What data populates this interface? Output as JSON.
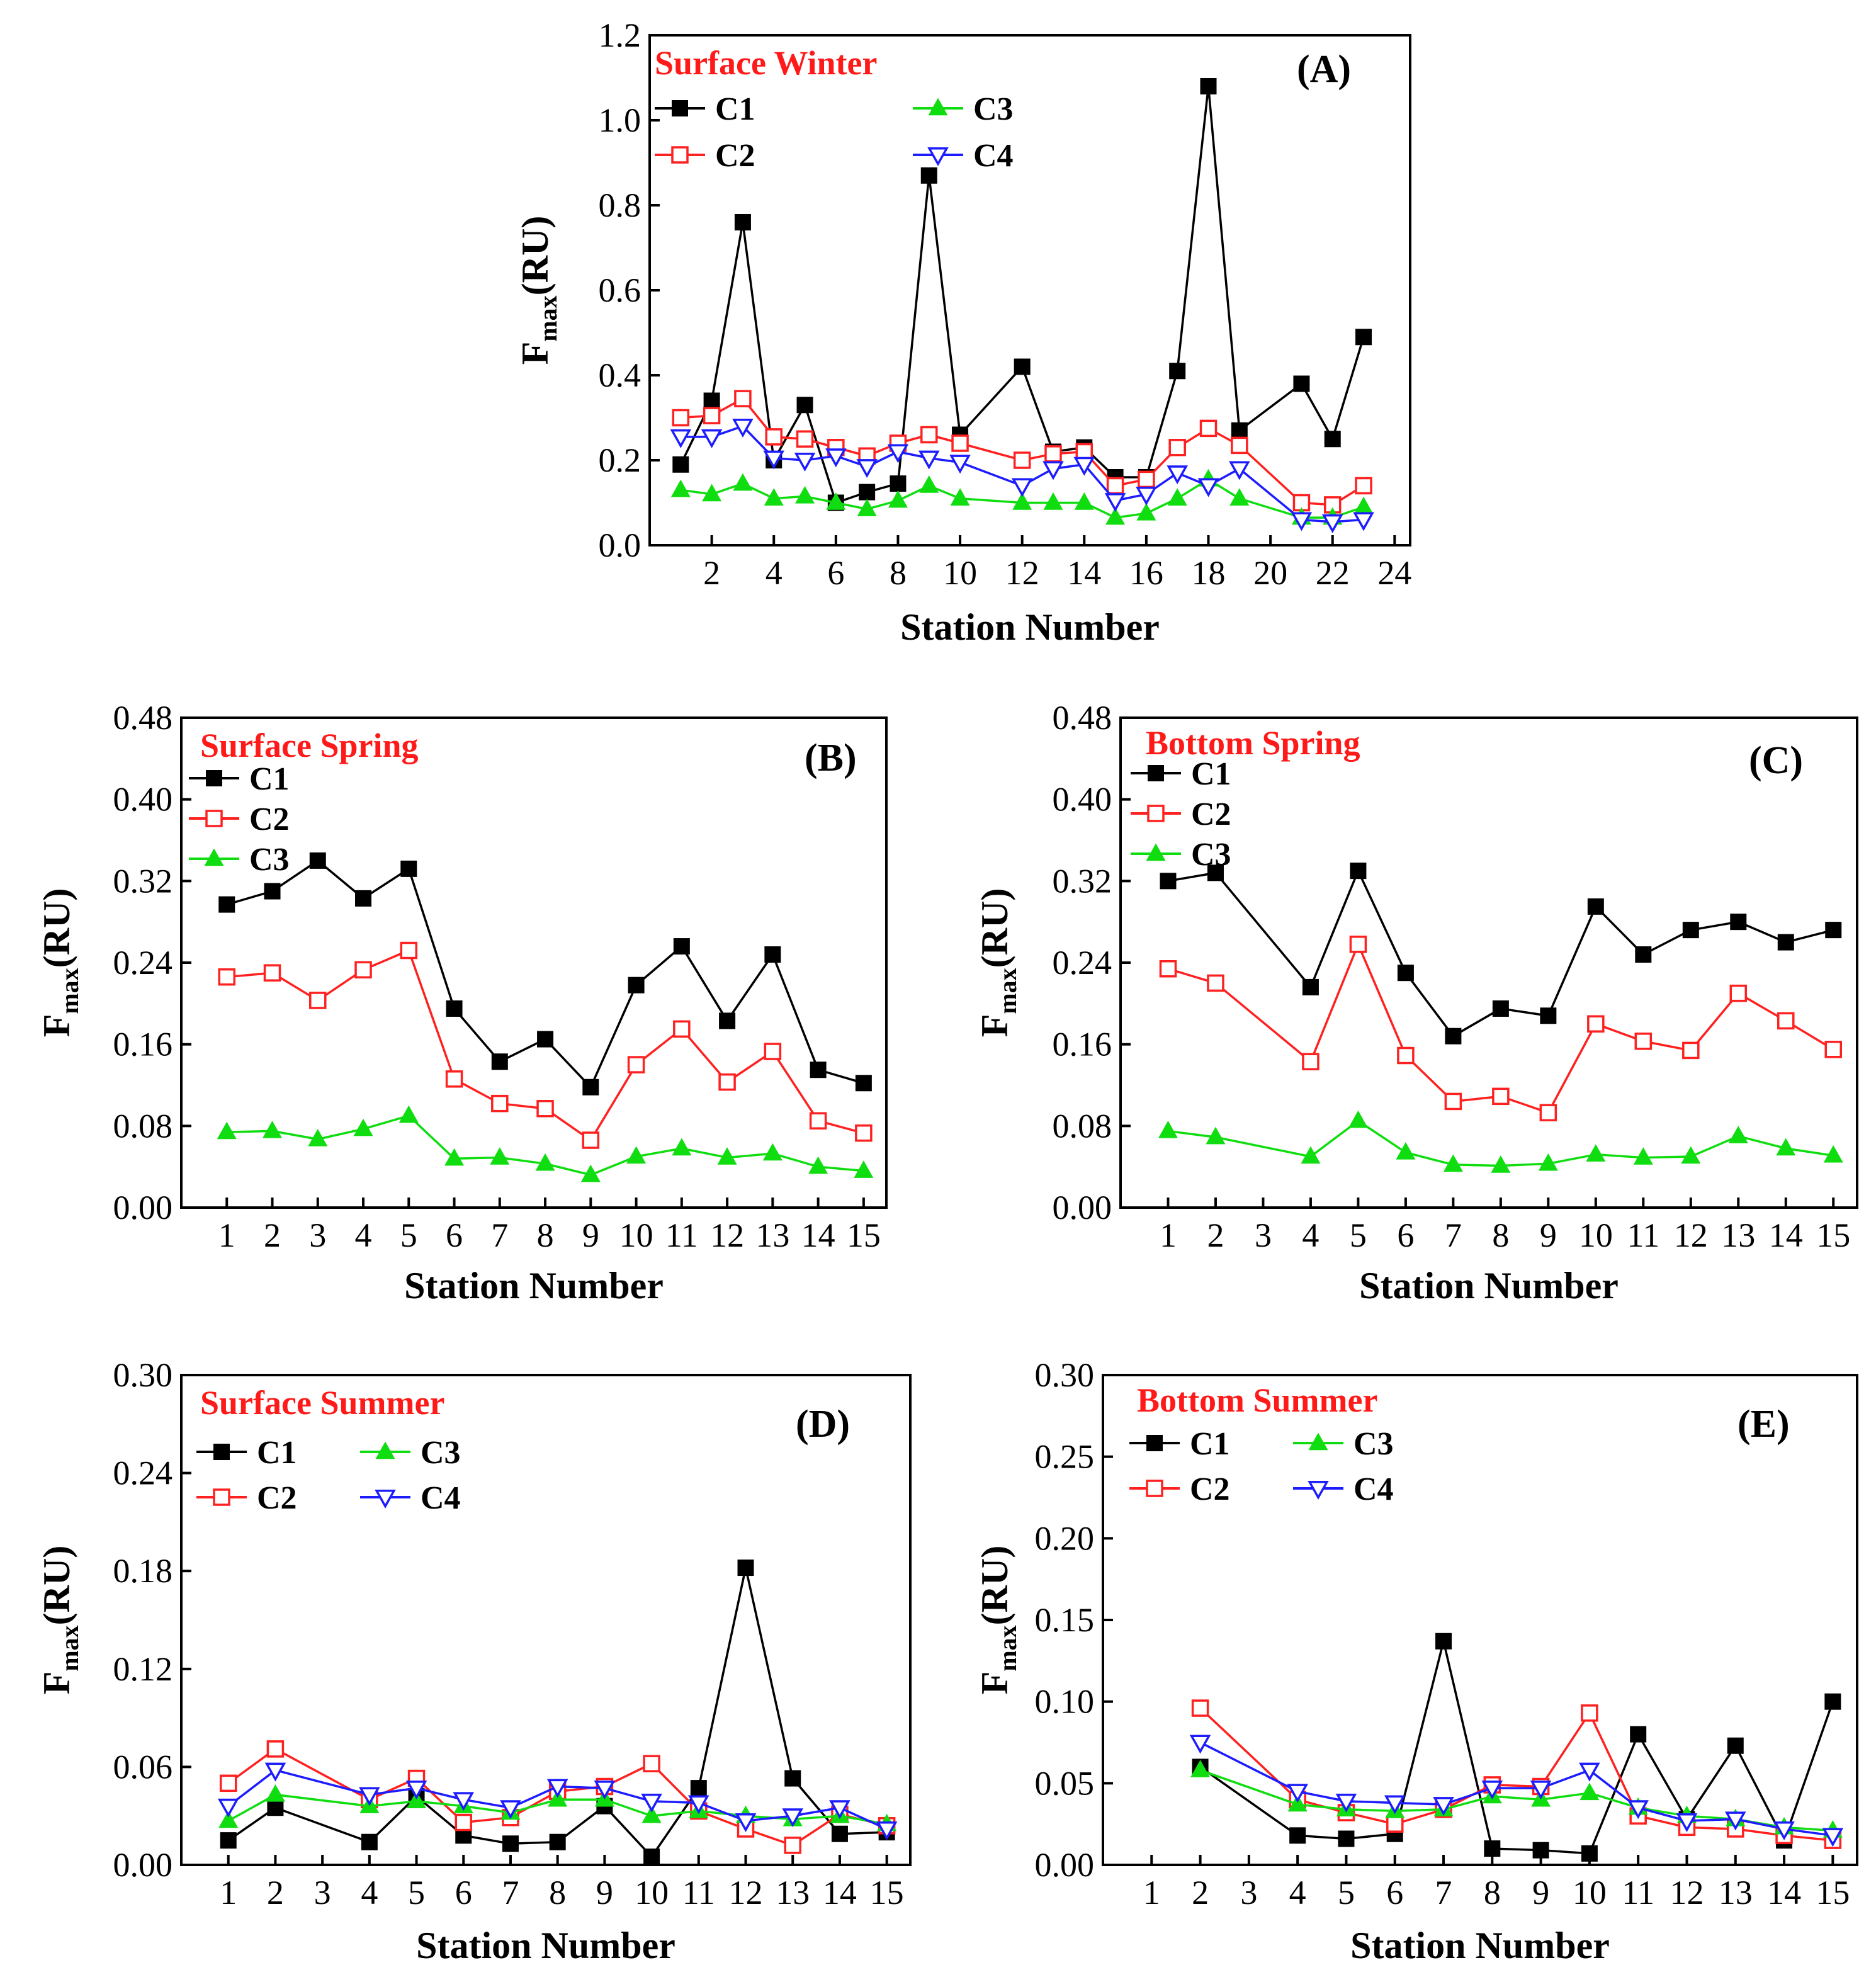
{
  "colors": {
    "C1": "#000000",
    "C2": "#ff2020",
    "C3": "#10dd10",
    "C4": "#1c1cff",
    "title": "#ff1a1a"
  },
  "markers": {
    "C1": "filled-square",
    "C2": "open-square",
    "C3": "filled-triangle-up",
    "C4": "open-triangle-down"
  },
  "chart_data": [
    {
      "type": "line",
      "title": "Surface Winter",
      "tag": "(A)",
      "xlabel": "Station Number",
      "ylabel_main": "F",
      "ylabel_sub": "max",
      "ylabel_unit": "(RU)",
      "xlim": [
        0,
        24.5
      ],
      "xticks": [
        2,
        4,
        6,
        8,
        10,
        12,
        14,
        16,
        18,
        20,
        22,
        24
      ],
      "ylim": [
        0,
        1.2
      ],
      "yticks": [
        "0.0",
        "0.2",
        "0.4",
        "0.6",
        "0.8",
        "1.0",
        "1.2"
      ],
      "legend_layout": "2x2",
      "series": [
        {
          "name": "C1",
          "x": [
            1,
            2,
            3,
            4,
            5,
            6,
            7,
            8,
            9,
            10,
            12,
            13,
            14,
            15,
            16,
            17,
            18,
            19,
            21,
            22,
            23
          ],
          "values": [
            0.19,
            0.34,
            0.76,
            0.2,
            0.33,
            0.1,
            0.125,
            0.145,
            0.87,
            0.26,
            0.42,
            0.22,
            0.23,
            0.16,
            0.16,
            0.41,
            1.08,
            0.27,
            0.38,
            0.25,
            0.49
          ]
        },
        {
          "name": "C2",
          "x": [
            1,
            2,
            3,
            4,
            5,
            6,
            7,
            8,
            9,
            10,
            12,
            13,
            14,
            15,
            16,
            17,
            18,
            19,
            21,
            22,
            23
          ],
          "values": [
            0.3,
            0.305,
            0.345,
            0.255,
            0.25,
            0.23,
            0.21,
            0.24,
            0.26,
            0.24,
            0.2,
            0.215,
            0.22,
            0.14,
            0.155,
            0.23,
            0.275,
            0.235,
            0.1,
            0.095,
            0.14
          ]
        },
        {
          "name": "C3",
          "x": [
            1,
            2,
            3,
            4,
            5,
            6,
            7,
            8,
            9,
            10,
            12,
            13,
            14,
            15,
            16,
            17,
            18,
            19,
            21,
            22,
            23
          ],
          "values": [
            0.13,
            0.12,
            0.145,
            0.11,
            0.115,
            0.1,
            0.085,
            0.105,
            0.14,
            0.11,
            0.1,
            0.1,
            0.1,
            0.065,
            0.075,
            0.11,
            0.155,
            0.11,
            0.065,
            0.065,
            0.09
          ]
        },
        {
          "name": "C4",
          "x": [
            1,
            2,
            3,
            4,
            5,
            6,
            7,
            8,
            9,
            10,
            12,
            13,
            14,
            15,
            16,
            17,
            18,
            19,
            21,
            22,
            23
          ],
          "values": [
            0.255,
            0.255,
            0.28,
            0.205,
            0.2,
            0.21,
            0.185,
            0.22,
            0.205,
            0.195,
            0.14,
            0.18,
            0.19,
            0.105,
            0.12,
            0.17,
            0.14,
            0.18,
            0.06,
            0.055,
            0.06
          ]
        }
      ]
    },
    {
      "type": "line",
      "title": "Surface Spring",
      "tag": "(B)",
      "xlabel": "Station Number",
      "ylabel_main": "F",
      "ylabel_sub": "max",
      "ylabel_unit": "(RU)",
      "xlim": [
        0,
        15.5
      ],
      "xticks": [
        1,
        2,
        3,
        4,
        5,
        6,
        7,
        8,
        9,
        10,
        11,
        12,
        13,
        14,
        15
      ],
      "ylim": [
        0,
        0.48
      ],
      "yticks": [
        "0.00",
        "0.08",
        "0.16",
        "0.24",
        "0.32",
        "0.40",
        "0.48"
      ],
      "legend_layout": "column",
      "series": [
        {
          "name": "C1",
          "x": [
            1,
            2,
            3,
            4,
            5,
            6,
            7,
            8,
            9,
            10,
            11,
            12,
            13,
            14,
            15
          ],
          "values": [
            0.297,
            0.31,
            0.34,
            0.303,
            0.332,
            0.195,
            0.143,
            0.165,
            0.118,
            0.218,
            0.256,
            0.183,
            0.248,
            0.135,
            0.122
          ]
        },
        {
          "name": "C2",
          "x": [
            1,
            2,
            3,
            4,
            5,
            6,
            7,
            8,
            9,
            10,
            11,
            12,
            13,
            14,
            15
          ],
          "values": [
            0.226,
            0.23,
            0.203,
            0.233,
            0.252,
            0.126,
            0.102,
            0.097,
            0.066,
            0.14,
            0.175,
            0.123,
            0.153,
            0.085,
            0.073
          ]
        },
        {
          "name": "C3",
          "x": [
            1,
            2,
            3,
            4,
            5,
            6,
            7,
            8,
            9,
            10,
            11,
            12,
            13,
            14,
            15
          ],
          "values": [
            0.074,
            0.075,
            0.067,
            0.077,
            0.09,
            0.048,
            0.049,
            0.043,
            0.032,
            0.05,
            0.058,
            0.049,
            0.053,
            0.04,
            0.036
          ]
        }
      ]
    },
    {
      "type": "line",
      "title": "Bottom Spring",
      "tag": "(C)",
      "xlabel": "Station Number",
      "ylabel_main": "F",
      "ylabel_sub": "max",
      "ylabel_unit": "(RU)",
      "xlim": [
        0,
        15.5
      ],
      "xticks": [
        1,
        2,
        3,
        4,
        5,
        6,
        7,
        8,
        9,
        10,
        11,
        12,
        13,
        14,
        15
      ],
      "ylim": [
        0,
        0.48
      ],
      "yticks": [
        "0.00",
        "0.08",
        "0.16",
        "0.24",
        "0.32",
        "0.40",
        "0.48"
      ],
      "legend_layout": "column",
      "series": [
        {
          "name": "C1",
          "x": [
            1,
            2,
            4,
            5,
            6,
            7,
            8,
            9,
            10,
            11,
            12,
            13,
            14,
            15
          ],
          "values": [
            0.32,
            0.328,
            0.216,
            0.33,
            0.23,
            0.168,
            0.195,
            0.188,
            0.295,
            0.248,
            0.272,
            0.28,
            0.26,
            0.272
          ]
        },
        {
          "name": "C2",
          "x": [
            1,
            2,
            4,
            5,
            6,
            7,
            8,
            9,
            10,
            11,
            12,
            13,
            14,
            15
          ],
          "values": [
            0.234,
            0.22,
            0.143,
            0.258,
            0.149,
            0.104,
            0.109,
            0.093,
            0.18,
            0.163,
            0.154,
            0.21,
            0.183,
            0.155
          ]
        },
        {
          "name": "C3",
          "x": [
            1,
            2,
            4,
            5,
            6,
            7,
            8,
            9,
            10,
            11,
            12,
            13,
            14,
            15
          ],
          "values": [
            0.075,
            0.069,
            0.05,
            0.085,
            0.054,
            0.042,
            0.041,
            0.043,
            0.052,
            0.049,
            0.05,
            0.07,
            0.058,
            0.051
          ]
        }
      ]
    },
    {
      "type": "line",
      "title": "Surface Summer",
      "tag": "(D)",
      "xlabel": "Station Number",
      "ylabel_main": "F",
      "ylabel_sub": "max",
      "ylabel_unit": "(RU)",
      "xlim": [
        0,
        15.5
      ],
      "xticks": [
        1,
        2,
        3,
        4,
        5,
        6,
        7,
        8,
        9,
        10,
        11,
        12,
        13,
        14,
        15
      ],
      "ylim": [
        0,
        0.3
      ],
      "yticks": [
        "0.00",
        "0.06",
        "0.12",
        "0.18",
        "0.24",
        "0.30"
      ],
      "legend_layout": "2x2",
      "series": [
        {
          "name": "C1",
          "x": [
            1,
            2,
            4,
            5,
            6,
            7,
            8,
            9,
            10,
            11,
            12,
            13,
            14,
            15
          ],
          "values": [
            0.015,
            0.035,
            0.014,
            0.042,
            0.018,
            0.013,
            0.014,
            0.036,
            0.005,
            0.047,
            0.182,
            0.053,
            0.019,
            0.02
          ]
        },
        {
          "name": "C2",
          "x": [
            1,
            2,
            4,
            5,
            6,
            7,
            8,
            9,
            10,
            11,
            12,
            13,
            14,
            15
          ],
          "values": [
            0.05,
            0.071,
            0.04,
            0.053,
            0.026,
            0.029,
            0.045,
            0.048,
            0.062,
            0.033,
            0.022,
            0.012,
            0.031,
            0.024
          ]
        },
        {
          "name": "C3",
          "x": [
            1,
            2,
            4,
            5,
            6,
            7,
            8,
            9,
            10,
            11,
            12,
            13,
            14,
            15
          ],
          "values": [
            0.027,
            0.043,
            0.036,
            0.039,
            0.036,
            0.032,
            0.04,
            0.04,
            0.03,
            0.033,
            0.03,
            0.028,
            0.03,
            0.025
          ]
        },
        {
          "name": "C4",
          "x": [
            1,
            2,
            4,
            5,
            6,
            7,
            8,
            9,
            10,
            11,
            12,
            13,
            14,
            15
          ],
          "values": [
            0.036,
            0.058,
            0.043,
            0.047,
            0.04,
            0.035,
            0.048,
            0.047,
            0.039,
            0.038,
            0.027,
            0.03,
            0.035,
            0.022
          ]
        }
      ]
    },
    {
      "type": "line",
      "title": "Bottom Summer",
      "tag": "(E)",
      "xlabel": "Station Number",
      "ylabel_main": "F",
      "ylabel_sub": "max",
      "ylabel_unit": "(RU)",
      "xlim": [
        0,
        15.5
      ],
      "xticks": [
        1,
        2,
        3,
        4,
        5,
        6,
        7,
        8,
        9,
        10,
        11,
        12,
        13,
        14,
        15
      ],
      "ylim": [
        0,
        0.3
      ],
      "yticks": [
        "0.00",
        "0.05",
        "0.10",
        "0.15",
        "0.20",
        "0.25",
        "0.30"
      ],
      "legend_layout": "2x2",
      "series": [
        {
          "name": "C1",
          "x": [
            2,
            4,
            5,
            6,
            7,
            8,
            9,
            10,
            11,
            12,
            13,
            14,
            15
          ],
          "values": [
            0.06,
            0.018,
            0.016,
            0.019,
            0.137,
            0.01,
            0.009,
            0.007,
            0.08,
            0.028,
            0.073,
            0.015,
            0.1
          ]
        },
        {
          "name": "C2",
          "x": [
            2,
            4,
            5,
            6,
            7,
            8,
            9,
            10,
            11,
            12,
            13,
            14,
            15
          ],
          "values": [
            0.096,
            0.04,
            0.032,
            0.025,
            0.034,
            0.049,
            0.048,
            0.093,
            0.03,
            0.023,
            0.022,
            0.018,
            0.015
          ]
        },
        {
          "name": "C3",
          "x": [
            2,
            4,
            5,
            6,
            7,
            8,
            9,
            10,
            11,
            12,
            13,
            14,
            15
          ],
          "values": [
            0.058,
            0.037,
            0.034,
            0.033,
            0.034,
            0.042,
            0.04,
            0.044,
            0.035,
            0.03,
            0.028,
            0.023,
            0.021
          ]
        },
        {
          "name": "C4",
          "x": [
            2,
            4,
            5,
            6,
            7,
            8,
            9,
            10,
            11,
            12,
            13,
            14,
            15
          ],
          "values": [
            0.075,
            0.045,
            0.039,
            0.038,
            0.037,
            0.047,
            0.047,
            0.058,
            0.035,
            0.027,
            0.028,
            0.022,
            0.018
          ]
        }
      ]
    }
  ]
}
